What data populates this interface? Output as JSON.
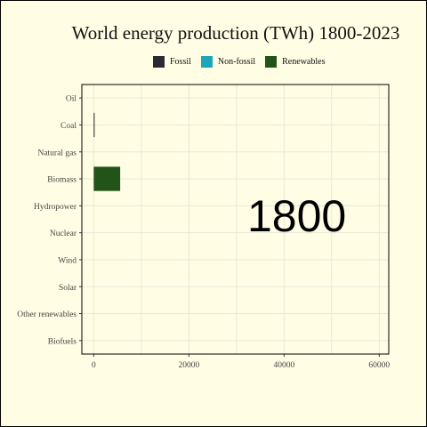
{
  "chart_data": {
    "type": "bar",
    "orientation": "horizontal",
    "title": "World energy production (TWh) 1800-2023",
    "year_label": "1800",
    "legend": [
      {
        "name": "Fossil",
        "color": "#2b2a33"
      },
      {
        "name": "Non-fossil",
        "color": "#1ea5b8"
      },
      {
        "name": "Renewables",
        "color": "#22541a"
      }
    ],
    "legend_position": "top",
    "categories": [
      "Oil",
      "Coal",
      "Natural gas",
      "Biomass",
      "Hydropower",
      "Nuclear",
      "Wind",
      "Solar",
      "Other renewables",
      "Biofuels"
    ],
    "values": [
      0,
      97,
      0,
      5556,
      0,
      0,
      0,
      0,
      0,
      0
    ],
    "category_group": [
      "Fossil",
      "Fossil",
      "Fossil",
      "Renewables",
      "Renewables",
      "Non-fossil",
      "Renewables",
      "Renewables",
      "Renewables",
      "Renewables"
    ],
    "xlim": [
      -2500,
      62000
    ],
    "xticks": [
      0,
      20000,
      40000,
      60000
    ],
    "xtick_labels": [
      "0",
      "20000",
      "40000",
      "60000"
    ],
    "grid": true
  }
}
